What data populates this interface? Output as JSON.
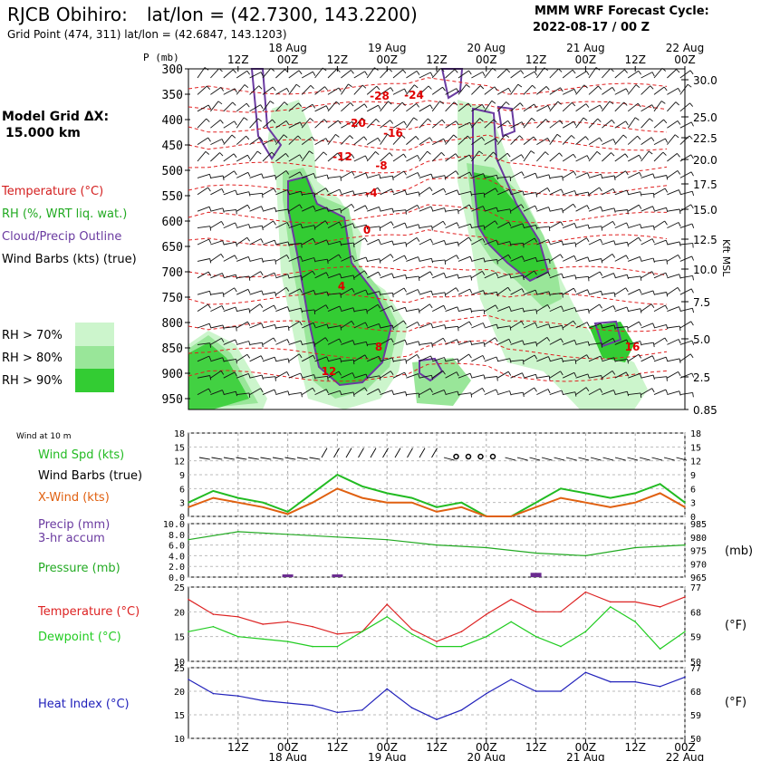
{
  "header": {
    "station": "RJCB Obihiro:",
    "latlon": "lat/lon = (42.7300, 143.2200)",
    "gridpoint": "Grid Point (474, 311) lat/lon = (42.6847, 143.1203)",
    "cycle_line1": "MMM WRF Forecast Cycle:",
    "cycle_line2": "2022-08-17 / 00  Z"
  },
  "sidebar": {
    "model_grid_line1": "Model Grid ΔX:",
    "model_grid_line2": "15.000 km",
    "legend": [
      {
        "label": "Temperature (°C)",
        "color": "#d42020"
      },
      {
        "label": "RH (%, WRT liq. wat.)",
        "color": "#22aa22"
      },
      {
        "label": "Cloud/Precip Outline",
        "color": "#6a3aa0"
      },
      {
        "label": "Wind Barbs (kts) (true)",
        "color": "#000000"
      }
    ],
    "rh_keys": [
      {
        "label": "RH > 70%",
        "color": "#ccf5cc"
      },
      {
        "label": "RH > 80%",
        "color": "#99e699"
      },
      {
        "label": "RH > 90%",
        "color": "#33cc33"
      }
    ]
  },
  "time_axis": {
    "labels": [
      "12Z",
      "00Z",
      "12Z",
      "00Z",
      "12Z",
      "00Z",
      "12Z",
      "00Z",
      "12Z",
      "00Z"
    ],
    "hours": [
      12,
      24,
      36,
      48,
      60,
      72,
      84,
      96,
      108,
      120
    ],
    "dates": [
      {
        "label": "18 Aug",
        "hour": 24
      },
      {
        "label": "19 Aug",
        "hour": 48
      },
      {
        "label": "20 Aug",
        "hour": 72
      },
      {
        "label": "21 Aug",
        "hour": 96
      },
      {
        "label": "22 Aug",
        "hour": 120
      }
    ],
    "range_hours": [
      0,
      120
    ]
  },
  "upper": {
    "p_label": "P (mb)",
    "p_levels": [
      300,
      350,
      400,
      450,
      500,
      550,
      600,
      650,
      700,
      750,
      800,
      850,
      900,
      950
    ],
    "kft_labels": [
      "30.0",
      "25.0",
      "22.5",
      "20.0",
      "17.5",
      "15.0",
      "12.5",
      "10.0",
      "7.5",
      "5.0",
      "2.5",
      "0.85"
    ],
    "kft_label": "Kft MSL",
    "temp_labels": [
      "-28",
      "-24",
      "-20",
      "-16",
      "-12",
      "-8",
      "-4",
      "0",
      "4",
      "8",
      "12",
      "16"
    ]
  },
  "panel_wind": {
    "title": "Wind at 10 m",
    "label1": "Wind Spd (kts)",
    "label2": "Wind Barbs (true)",
    "label3": "X-Wind (kts)",
    "yticks": [
      "18",
      "15",
      "12",
      "9",
      "6",
      "3",
      "0"
    ]
  },
  "panel_precip": {
    "label1": "Precip (mm)",
    "label2": "3-hr accum",
    "label3": "Pressure (mb)",
    "left_ticks": [
      "10.0",
      "8.0",
      "6.0",
      "4.0",
      "2.0",
      "0.0"
    ],
    "right_ticks": [
      "985",
      "980",
      "975",
      "970",
      "965"
    ],
    "right_unit": "(mb)"
  },
  "panel_temp": {
    "label1": "Temperature (°C)",
    "label2": "Dewpoint (°C)",
    "left_ticks": [
      "25",
      "20",
      "15",
      "10"
    ],
    "right_ticks": [
      "77",
      "68",
      "59",
      "50"
    ],
    "right_unit": "(°F)"
  },
  "panel_heat": {
    "label1": "Heat Index (°C)",
    "left_ticks": [
      "25",
      "20",
      "15",
      "10"
    ],
    "right_ticks": [
      "77",
      "68",
      "59",
      "50"
    ],
    "right_unit": "(°F)"
  },
  "chart_data": [
    {
      "type": "line",
      "title": "Wind at 10 m",
      "x_hours": [
        0,
        6,
        12,
        18,
        24,
        30,
        36,
        42,
        48,
        54,
        60,
        66,
        72,
        78,
        84,
        90,
        96,
        102,
        108,
        114,
        120
      ],
      "ylim": [
        0,
        18
      ],
      "series": [
        {
          "name": "Wind Spd (kts)",
          "color": "#22bb22",
          "values": [
            3,
            5.5,
            4,
            3,
            1,
            5,
            9,
            6.5,
            5,
            4,
            2,
            3,
            0,
            0,
            3,
            6,
            5,
            4,
            5,
            7,
            3
          ]
        },
        {
          "name": "X-Wind (kts)",
          "color": "#e06010",
          "values": [
            2,
            4,
            3,
            2,
            0.5,
            3,
            6,
            4,
            3,
            3,
            1,
            2,
            0,
            0,
            2,
            4,
            3,
            2,
            3,
            5,
            2
          ]
        }
      ]
    },
    {
      "type": "line",
      "title": "Precip (mm) 3-hr accum / Pressure (mb)",
      "x_hours": [
        0,
        12,
        24,
        36,
        48,
        60,
        72,
        84,
        96,
        108,
        120
      ],
      "series": [
        {
          "name": "Pressure (mb)",
          "color": "#22aa22",
          "values": [
            979,
            982,
            981,
            980,
            979,
            977,
            976,
            974,
            973,
            976,
            977
          ]
        }
      ],
      "precip_bars": [
        {
          "hour": 24,
          "mm": 0.5
        },
        {
          "hour": 36,
          "mm": 0.5
        },
        {
          "hour": 84,
          "mm": 0.8
        }
      ],
      "ylim_pressure": [
        965,
        985
      ],
      "ylim_precip": [
        0,
        10
      ]
    },
    {
      "type": "line",
      "title": "Temperature / Dewpoint",
      "x_hours": [
        0,
        6,
        12,
        18,
        24,
        30,
        36,
        42,
        48,
        54,
        60,
        66,
        72,
        78,
        84,
        90,
        96,
        102,
        108,
        114,
        120
      ],
      "ylim": [
        10,
        25
      ],
      "series": [
        {
          "name": "Temperature (°C)",
          "color": "#dd2222",
          "values": [
            22.5,
            19.5,
            19,
            17.5,
            18,
            17,
            15.5,
            16,
            21.5,
            16.5,
            14,
            16,
            19.5,
            22.5,
            20,
            20,
            24,
            22,
            22,
            21,
            23
          ]
        },
        {
          "name": "Dewpoint (°C)",
          "color": "#22cc22",
          "values": [
            16,
            17,
            15,
            14.5,
            14,
            13,
            13,
            16,
            19,
            15.5,
            13,
            13,
            15,
            18,
            15,
            13,
            16,
            21,
            18,
            12.5,
            16
          ]
        }
      ]
    },
    {
      "type": "line",
      "title": "Heat Index (°C)",
      "x_hours": [
        0,
        6,
        12,
        18,
        24,
        30,
        36,
        42,
        48,
        54,
        60,
        66,
        72,
        78,
        84,
        90,
        96,
        102,
        108,
        114,
        120
      ],
      "ylim": [
        10,
        25
      ],
      "series": [
        {
          "name": "Heat Index (°C)",
          "color": "#2222bb",
          "values": [
            22.5,
            19.5,
            19,
            18,
            17.5,
            17,
            15.5,
            16,
            20.5,
            16.5,
            14,
            16,
            19.5,
            22.5,
            20,
            20,
            24,
            22,
            22,
            21,
            23
          ]
        }
      ]
    }
  ]
}
